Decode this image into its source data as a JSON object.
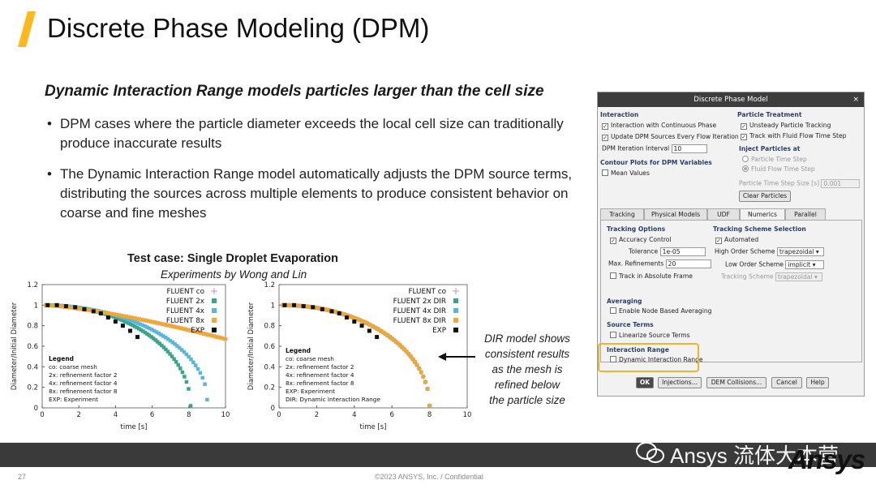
{
  "slide": {
    "title": "Discrete Phase Modeling (DPM)",
    "subtitle": "Dynamic Interaction Range models particles larger than the cell size",
    "bullets": [
      "DPM cases where the particle diameter exceeds the local cell size can traditionally produce inaccurate results",
      "The Dynamic Interaction Range model automatically adjusts the DPM source terms, distributing the sources across multiple elements to produce consistent behavior on coarse and fine meshes"
    ],
    "bullet_symbol": "•",
    "test_case_title": "Test case: Single Droplet Evaporation",
    "test_case_subtitle": "Experiments by Wong and Lin",
    "annotation_lines": [
      "DIR model shows",
      "consistent results",
      "as the mesh is",
      "refined below",
      "the particle size"
    ],
    "page_number": "27",
    "copyright": "©2023 ANSYS, Inc. / Confidential",
    "brand": "Ansys",
    "watermark": "Ansys 流体大本营",
    "accent_color": "#ffb71b"
  },
  "chart_data": [
    {
      "type": "scatter",
      "title": "",
      "xlabel": "time [s]",
      "ylabel": "Diameter/Initial Diameter",
      "xlim": [
        0,
        10
      ],
      "ylim": [
        0,
        1.2
      ],
      "xticks": [
        0,
        2,
        4,
        6,
        8,
        10
      ],
      "yticks": [
        0,
        0.2,
        0.4,
        0.6,
        0.8,
        1,
        1.2
      ],
      "ytick_labels": [
        "0",
        "0.2",
        "0.4",
        "0.6",
        "0.8",
        "1",
        "1.2"
      ],
      "legend_position": "top-right",
      "series": [
        {
          "name": "FLUENT co",
          "marker": "plus",
          "color": "#c98fd0",
          "x_end": 10,
          "y_end": 0.67,
          "shape": "gentle"
        },
        {
          "name": "FLUENT 2x",
          "marker": "square",
          "color": "#3aa58a",
          "x_end": 8.1,
          "y_end": 0.02,
          "shape": "fast"
        },
        {
          "name": "FLUENT 4x",
          "marker": "square",
          "color": "#5ab4e0",
          "x_end": 9.0,
          "y_end": 0.08,
          "shape": "mid"
        },
        {
          "name": "FLUENT 8x",
          "marker": "square",
          "color": "#f0a830",
          "x_end": 10,
          "y_end": 0.67,
          "shape": "gentle"
        },
        {
          "name": "EXP",
          "marker": "square",
          "color": "#111111",
          "points": [
            [
              0.3,
              1.0
            ],
            [
              0.8,
              1.0
            ],
            [
              1.3,
              0.99
            ],
            [
              1.8,
              0.98
            ],
            [
              2.3,
              0.96
            ],
            [
              2.8,
              0.94
            ],
            [
              3.2,
              0.92
            ],
            [
              3.6,
              0.88
            ],
            [
              4.0,
              0.84
            ],
            [
              4.4,
              0.8
            ],
            [
              4.8,
              0.75
            ],
            [
              5.2,
              0.69
            ]
          ]
        }
      ],
      "legend_box": {
        "title": "Legend",
        "lines": [
          "co: coarse mesh",
          "2x: refinement factor 2",
          "4x: refinement factor 4",
          "8x: refinement factor 8",
          "EXP: Experiment"
        ]
      }
    },
    {
      "type": "scatter",
      "title": "",
      "xlabel": "time [s]",
      "ylabel": "Diameter/Initial Diameter",
      "xlim": [
        0,
        10
      ],
      "ylim": [
        0,
        1.2
      ],
      "xticks": [
        0,
        2,
        4,
        6,
        8,
        10
      ],
      "yticks": [
        0,
        0.2,
        0.4,
        0.6,
        0.8,
        1,
        1.2
      ],
      "ytick_labels": [
        "0",
        "0.2",
        "0.4",
        "0.6",
        "0.8",
        "1",
        "1.2"
      ],
      "legend_position": "top-right",
      "series": [
        {
          "name": "FLUENT co",
          "marker": "plus",
          "color": "#c98fd0",
          "x_end": 8.0,
          "y_end": 0.02,
          "shape": "fast"
        },
        {
          "name": "FLUENT 2x DIR",
          "marker": "square",
          "color": "#3aa58a",
          "x_end": 8.0,
          "y_end": 0.02,
          "shape": "fast"
        },
        {
          "name": "FLUENT 4x DIR",
          "marker": "square",
          "color": "#5ab4e0",
          "x_end": 8.0,
          "y_end": 0.02,
          "shape": "fast"
        },
        {
          "name": "FLUENT 8x DIR",
          "marker": "square",
          "color": "#f0a830",
          "x_end": 8.0,
          "y_end": 0.02,
          "shape": "fast"
        },
        {
          "name": "EXP",
          "marker": "square",
          "color": "#111111",
          "points": [
            [
              0.3,
              1.0
            ],
            [
              0.8,
              1.0
            ],
            [
              1.3,
              0.99
            ],
            [
              1.8,
              0.98
            ],
            [
              2.3,
              0.96
            ],
            [
              2.8,
              0.94
            ],
            [
              3.2,
              0.92
            ],
            [
              3.6,
              0.88
            ],
            [
              4.0,
              0.84
            ],
            [
              4.4,
              0.8
            ],
            [
              4.8,
              0.75
            ],
            [
              5.2,
              0.69
            ]
          ]
        }
      ],
      "legend_box": {
        "title": "Legend",
        "lines": [
          "co: coarse mesh",
          "2x: refinement factor 2",
          "4x: refinement factor 4",
          "8x: refinement factor 8",
          "EXP: Experiment",
          "DIR: Dynamic Interaction Range"
        ]
      }
    }
  ],
  "dialog": {
    "title": "Discrete Phase Model",
    "close_symbol": "×",
    "interaction": {
      "header": "Interaction",
      "cb1": "Interaction with Continuous Phase",
      "cb2": "Update DPM Sources Every Flow Iteration",
      "interval_label": "DPM Iteration Interval",
      "interval_value": "10"
    },
    "contour": {
      "header": "Contour Plots for DPM Variables",
      "cb": "Mean Values"
    },
    "particle_treatment": {
      "header": "Particle Treatment",
      "cb1": "Unsteady Particle Tracking",
      "cb2": "Track with Fluid Flow Time Step",
      "inject_header": "Inject Particles at",
      "rb1": "Particle Time Step",
      "rb2": "Fluid Flow Time Step",
      "step_label": "Particle Time Step Size [s]",
      "step_value": "0.001",
      "clear_button": "Clear Particles"
    },
    "tabs": [
      "Tracking",
      "Physical Models",
      "UDF",
      "Numerics",
      "Parallel"
    ],
    "numerics": {
      "tracking_header": "Tracking Options",
      "accuracy": "Accuracy Control",
      "tolerance_label": "Tolerance",
      "tolerance_value": "1e-05",
      "refinements_label": "Max. Refinements",
      "refinements_value": "20",
      "absolute_frame": "Track in Absolute Frame",
      "scheme_header": "Tracking Scheme Selection",
      "automated": "Automated",
      "high_label": "High Order Scheme",
      "high_value": "trapezoidal",
      "low_label": "Low Order Scheme",
      "low_value": "implicit",
      "scheme_label": "Tracking Scheme",
      "scheme_value": "trapezoidal",
      "averaging_header": "Averaging",
      "node_averaging": "Enable Node Based Averaging",
      "source_header": "Source Terms",
      "linearize": "Linearize Source Terms",
      "ir_header": "Interaction Range",
      "ir_cb": "Dynamic Interaction Range"
    },
    "buttons": {
      "ok": "OK",
      "injections": "Injections...",
      "dem": "DEM Collisions...",
      "cancel": "Cancel",
      "help": "Help"
    },
    "check_mark": "✓"
  }
}
